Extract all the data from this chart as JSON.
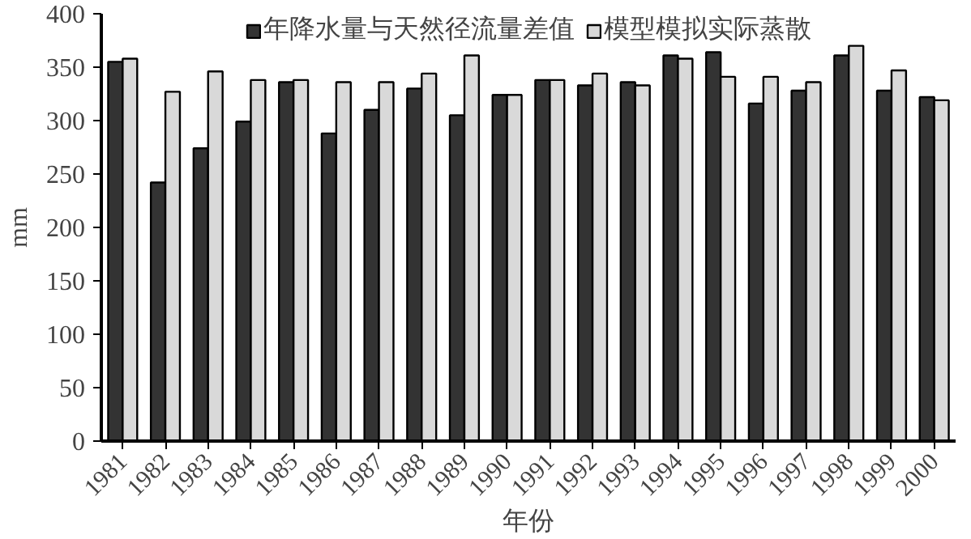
{
  "chart_data": {
    "type": "bar",
    "xlabel": "年份",
    "ylabel": "mm",
    "categories": [
      "1981",
      "1982",
      "1983",
      "1984",
      "1985",
      "1986",
      "1987",
      "1988",
      "1989",
      "1990",
      "1991",
      "1992",
      "1993",
      "1994",
      "1995",
      "1996",
      "1997",
      "1998",
      "1999",
      "2000"
    ],
    "series": [
      {
        "name": "年降水量与天然径流量差值",
        "color": "#333333",
        "values": [
          355,
          242,
          274,
          299,
          336,
          288,
          310,
          330,
          305,
          324,
          338,
          333,
          336,
          361,
          364,
          316,
          328,
          361,
          328,
          322
        ]
      },
      {
        "name": "模型模拟实际蒸散",
        "color": "#d9d9d9",
        "values": [
          358,
          327,
          346,
          338,
          338,
          336,
          336,
          344,
          361,
          324,
          338,
          344,
          333,
          358,
          341,
          341,
          336,
          370,
          347,
          319
        ]
      }
    ],
    "ylim": [
      0,
      400
    ],
    "yticks": [
      0,
      50,
      100,
      150,
      200,
      250,
      300,
      350,
      400
    ],
    "grid": false,
    "legend": "top"
  }
}
